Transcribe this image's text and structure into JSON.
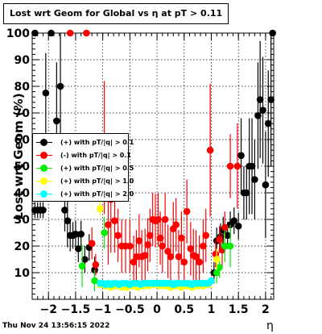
{
  "title": "Lost wrt Geom for Global vs  η at pT > 0.11",
  "footer": "Thu Nov 24 13:56:15 2022",
  "chart_data": {
    "type": "scatter",
    "title": "Lost wrt Geom for Global vs  η at pT > 0.11",
    "xlabel": "η",
    "ylabel": "Lost wrt Geom (%)",
    "xlim": [
      -2.3,
      2.15
    ],
    "ylim": [
      0,
      100
    ],
    "xticks": [
      -2,
      -1.5,
      -1,
      -0.5,
      0,
      0.5,
      1,
      1.5,
      2
    ],
    "xtick_labels": [
      "−2",
      "−1.5",
      "−1",
      "−0.5",
      "0",
      "0.5",
      "1",
      "1.5",
      "2"
    ],
    "yticks": [
      10,
      20,
      30,
      40,
      50,
      60,
      70,
      80,
      90,
      100
    ],
    "ytick_labels": [
      "10",
      "20",
      "30",
      "40",
      "50",
      "60",
      "70",
      "80",
      "90",
      "100"
    ],
    "grid": true,
    "legend_position": "left-middle",
    "series": [
      {
        "name": "(+) with pT/|q| > 0.1",
        "color": "#000000",
        "points": [
          {
            "x": -2.25,
            "y": 100,
            "err": 0
          },
          {
            "x": -2.25,
            "y": 33.5,
            "err": 3
          },
          {
            "x": -2.2,
            "y": 33.5,
            "err": 3
          },
          {
            "x": -2.15,
            "y": 33.5,
            "err": 3
          },
          {
            "x": -2.1,
            "y": 33.5,
            "err": 3
          },
          {
            "x": -2.05,
            "y": 77.5,
            "err": 15
          },
          {
            "x": -1.95,
            "y": 100,
            "err": 0
          },
          {
            "x": -1.85,
            "y": 67,
            "err": 22
          },
          {
            "x": -1.78,
            "y": 80,
            "err": 20
          },
          {
            "x": -1.7,
            "y": 33.5,
            "err": 8
          },
          {
            "x": -1.65,
            "y": 29.5,
            "err": 10
          },
          {
            "x": -1.6,
            "y": 24,
            "err": 6
          },
          {
            "x": -1.55,
            "y": 24,
            "err": 5
          },
          {
            "x": -1.5,
            "y": 24.5,
            "err": 5
          },
          {
            "x": -1.45,
            "y": 19,
            "err": 5
          },
          {
            "x": -1.4,
            "y": 24.5,
            "err": 5
          },
          {
            "x": -1.33,
            "y": 15,
            "err": 5
          },
          {
            "x": -1.25,
            "y": 19.5,
            "err": 5
          },
          {
            "x": -1.15,
            "y": 11,
            "err": 5
          },
          {
            "x": 1.05,
            "y": 10,
            "err": 4
          },
          {
            "x": 1.1,
            "y": 22,
            "err": 5
          },
          {
            "x": 1.17,
            "y": 23.5,
            "err": 5
          },
          {
            "x": 1.22,
            "y": 26,
            "err": 5
          },
          {
            "x": 1.3,
            "y": 24,
            "err": 5
          },
          {
            "x": 1.35,
            "y": 28,
            "err": 5
          },
          {
            "x": 1.42,
            "y": 29.5,
            "err": 5
          },
          {
            "x": 1.5,
            "y": 27.5,
            "err": 5
          },
          {
            "x": 1.55,
            "y": 54,
            "err": 14
          },
          {
            "x": 1.6,
            "y": 40,
            "err": 10
          },
          {
            "x": 1.65,
            "y": 40,
            "err": 10
          },
          {
            "x": 1.7,
            "y": 50,
            "err": 18
          },
          {
            "x": 1.75,
            "y": 50,
            "err": 18
          },
          {
            "x": 1.8,
            "y": 45,
            "err": 15
          },
          {
            "x": 1.86,
            "y": 69,
            "err": 20
          },
          {
            "x": 1.9,
            "y": 75,
            "err": 22
          },
          {
            "x": 1.95,
            "y": 71,
            "err": 20
          },
          {
            "x": 2.0,
            "y": 43,
            "err": 20
          },
          {
            "x": 2.05,
            "y": 66,
            "err": 20
          },
          {
            "x": 2.1,
            "y": 75,
            "err": 25
          },
          {
            "x": 2.13,
            "y": 100,
            "err": 0
          }
        ]
      },
      {
        "name": "(-) with pT/|q| > 0.1",
        "color": "#ff0000",
        "points": [
          {
            "x": -1.6,
            "y": 100,
            "err": 0
          },
          {
            "x": -1.3,
            "y": 100,
            "err": 0
          },
          {
            "x": -1.2,
            "y": 21,
            "err": 6
          },
          {
            "x": -1.13,
            "y": 13,
            "err": 4
          },
          {
            "x": -0.97,
            "y": 57,
            "err": 25
          },
          {
            "x": -0.9,
            "y": 28,
            "err": 15
          },
          {
            "x": -0.85,
            "y": 37.5,
            "err": 20
          },
          {
            "x": -0.78,
            "y": 29.5,
            "err": 12
          },
          {
            "x": -0.72,
            "y": 24,
            "err": 10
          },
          {
            "x": -0.65,
            "y": 20,
            "err": 10
          },
          {
            "x": -0.58,
            "y": 20,
            "err": 10
          },
          {
            "x": -0.5,
            "y": 20,
            "err": 10
          },
          {
            "x": -0.43,
            "y": 14,
            "err": 10
          },
          {
            "x": -0.38,
            "y": 16,
            "err": 10
          },
          {
            "x": -0.33,
            "y": 22,
            "err": 10
          },
          {
            "x": -0.28,
            "y": 16,
            "err": 10
          },
          {
            "x": -0.22,
            "y": 16.5,
            "err": 10
          },
          {
            "x": -0.17,
            "y": 20.5,
            "err": 10
          },
          {
            "x": -0.13,
            "y": 24,
            "err": 10
          },
          {
            "x": -0.08,
            "y": 30,
            "err": 10
          },
          {
            "x": -0.03,
            "y": 29.5,
            "err": 10
          },
          {
            "x": 0.02,
            "y": 30,
            "err": 10
          },
          {
            "x": 0.06,
            "y": 23,
            "err": 10
          },
          {
            "x": 0.1,
            "y": 20,
            "err": 10
          },
          {
            "x": 0.15,
            "y": 30,
            "err": 10
          },
          {
            "x": 0.2,
            "y": 18,
            "err": 10
          },
          {
            "x": 0.25,
            "y": 16,
            "err": 10
          },
          {
            "x": 0.3,
            "y": 26.5,
            "err": 10
          },
          {
            "x": 0.35,
            "y": 28,
            "err": 10
          },
          {
            "x": 0.4,
            "y": 16,
            "err": 10
          },
          {
            "x": 0.45,
            "y": 23,
            "err": 10
          },
          {
            "x": 0.5,
            "y": 14,
            "err": 10
          },
          {
            "x": 0.55,
            "y": 33,
            "err": 12
          },
          {
            "x": 0.62,
            "y": 19,
            "err": 10
          },
          {
            "x": 0.67,
            "y": 16.5,
            "err": 10
          },
          {
            "x": 0.72,
            "y": 16,
            "err": 10
          },
          {
            "x": 0.78,
            "y": 14,
            "err": 10
          },
          {
            "x": 0.85,
            "y": 20,
            "err": 10
          },
          {
            "x": 0.9,
            "y": 24,
            "err": 10
          },
          {
            "x": 0.98,
            "y": 56,
            "err": 25
          },
          {
            "x": 1.08,
            "y": 17,
            "err": 5
          },
          {
            "x": 1.15,
            "y": 22.5,
            "err": 5
          },
          {
            "x": 1.2,
            "y": 18.5,
            "err": 6
          },
          {
            "x": 1.25,
            "y": 27,
            "err": 6
          },
          {
            "x": 1.35,
            "y": 50,
            "err": 12
          },
          {
            "x": 1.48,
            "y": 50,
            "err": 16
          }
        ]
      },
      {
        "name": "(+) with pT/|q| > 0.5",
        "color": "#00ee00",
        "points": [
          {
            "x": -1.38,
            "y": 12.5,
            "err": 8
          },
          {
            "x": -1.15,
            "y": 7,
            "err": 4
          },
          {
            "x": -0.97,
            "y": 25,
            "err": 6
          },
          {
            "x": 1.1,
            "y": 10,
            "err": 4
          },
          {
            "x": 1.15,
            "y": 12,
            "err": 4
          },
          {
            "x": 1.25,
            "y": 20,
            "err": 6
          },
          {
            "x": 1.35,
            "y": 20,
            "err": 8
          }
        ]
      },
      {
        "name": "(+) with pT/|q| > 1.0",
        "color": "#ffff00",
        "points": [
          {
            "x": -1.05,
            "y": 34,
            "err": 3
          },
          {
            "x": -1.05,
            "y": 5.5,
            "err": 1
          },
          {
            "x": -0.95,
            "y": 5,
            "err": 1
          },
          {
            "x": -0.85,
            "y": 4.5,
            "err": 1
          },
          {
            "x": -0.75,
            "y": 5,
            "err": 1
          },
          {
            "x": -0.65,
            "y": 4.5,
            "err": 1
          },
          {
            "x": -0.55,
            "y": 4.5,
            "err": 1
          },
          {
            "x": -0.45,
            "y": 5,
            "err": 1
          },
          {
            "x": -0.35,
            "y": 4.5,
            "err": 1
          },
          {
            "x": -0.25,
            "y": 5,
            "err": 1
          },
          {
            "x": -0.15,
            "y": 5,
            "err": 1
          },
          {
            "x": -0.05,
            "y": 5.5,
            "err": 1
          },
          {
            "x": 0.05,
            "y": 5,
            "err": 1
          },
          {
            "x": 0.15,
            "y": 5,
            "err": 1
          },
          {
            "x": 0.25,
            "y": 4.5,
            "err": 1
          },
          {
            "x": 0.35,
            "y": 5,
            "err": 1
          },
          {
            "x": 0.45,
            "y": 4.5,
            "err": 1
          },
          {
            "x": 0.55,
            "y": 5,
            "err": 1
          },
          {
            "x": 0.65,
            "y": 4.5,
            "err": 1
          },
          {
            "x": 0.75,
            "y": 5,
            "err": 1
          },
          {
            "x": 0.85,
            "y": 5,
            "err": 1
          },
          {
            "x": 0.95,
            "y": 5.5,
            "err": 1
          },
          {
            "x": 1.1,
            "y": 15,
            "err": 4
          }
        ]
      },
      {
        "name": "(+) with pT/|q| > 2.0",
        "color": "#00ffff",
        "points": [
          {
            "x": -1.05,
            "y": 6,
            "err": 1
          },
          {
            "x": -1.0,
            "y": 6,
            "err": 1
          },
          {
            "x": -0.95,
            "y": 5.5,
            "err": 1
          },
          {
            "x": -0.9,
            "y": 6,
            "err": 1
          },
          {
            "x": -0.85,
            "y": 5.5,
            "err": 1
          },
          {
            "x": -0.8,
            "y": 6,
            "err": 1
          },
          {
            "x": -0.75,
            "y": 6,
            "err": 1
          },
          {
            "x": -0.7,
            "y": 5.5,
            "err": 1
          },
          {
            "x": -0.65,
            "y": 6,
            "err": 1
          },
          {
            "x": -0.6,
            "y": 6,
            "err": 1
          },
          {
            "x": -0.55,
            "y": 6,
            "err": 1
          },
          {
            "x": -0.5,
            "y": 5.5,
            "err": 1
          },
          {
            "x": -0.45,
            "y": 6,
            "err": 1
          },
          {
            "x": -0.4,
            "y": 6,
            "err": 1
          },
          {
            "x": -0.35,
            "y": 6,
            "err": 1
          },
          {
            "x": -0.3,
            "y": 5.5,
            "err": 1
          },
          {
            "x": -0.25,
            "y": 6,
            "err": 1
          },
          {
            "x": -0.2,
            "y": 6,
            "err": 1
          },
          {
            "x": -0.15,
            "y": 6,
            "err": 1
          },
          {
            "x": -0.1,
            "y": 6,
            "err": 1
          },
          {
            "x": -0.05,
            "y": 6,
            "err": 1
          },
          {
            "x": 0.0,
            "y": 6,
            "err": 1
          },
          {
            "x": 0.05,
            "y": 6,
            "err": 1
          },
          {
            "x": 0.1,
            "y": 6,
            "err": 1
          },
          {
            "x": 0.15,
            "y": 6,
            "err": 1
          },
          {
            "x": 0.2,
            "y": 6,
            "err": 1
          },
          {
            "x": 0.25,
            "y": 6,
            "err": 1
          },
          {
            "x": 0.3,
            "y": 5.5,
            "err": 1
          },
          {
            "x": 0.35,
            "y": 6,
            "err": 1
          },
          {
            "x": 0.4,
            "y": 6,
            "err": 1
          },
          {
            "x": 0.45,
            "y": 6,
            "err": 1
          },
          {
            "x": 0.5,
            "y": 6,
            "err": 1
          },
          {
            "x": 0.55,
            "y": 6,
            "err": 1
          },
          {
            "x": 0.6,
            "y": 6,
            "err": 1
          },
          {
            "x": 0.65,
            "y": 5.5,
            "err": 1
          },
          {
            "x": 0.7,
            "y": 6,
            "err": 1
          },
          {
            "x": 0.75,
            "y": 6,
            "err": 1
          },
          {
            "x": 0.8,
            "y": 6,
            "err": 1
          },
          {
            "x": 0.85,
            "y": 6,
            "err": 1
          },
          {
            "x": 0.9,
            "y": 6,
            "err": 1
          },
          {
            "x": 0.95,
            "y": 6,
            "err": 1
          },
          {
            "x": 1.0,
            "y": 7,
            "err": 1
          }
        ]
      }
    ]
  }
}
